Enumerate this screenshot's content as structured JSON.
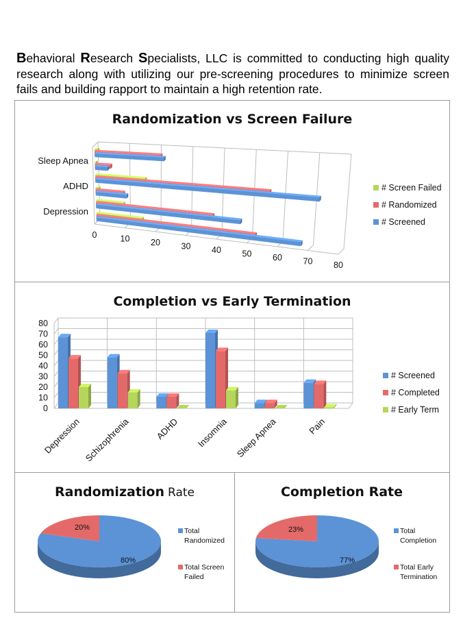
{
  "intro": {
    "c1": "B",
    "w1": "ehavioral ",
    "c2": "R",
    "w2": "esearch ",
    "c3": "S",
    "w3": "pecialists, LLC is committed to conducting high quality research along with utilizing our pre-screening procedures to minimize screen fails and building rapport to maintain a high retention rate."
  },
  "colors": {
    "blue": "#5b93d6",
    "red": "#e46a6a",
    "green": "#b5d65a"
  },
  "chart_data": [
    {
      "type": "bar",
      "orientation": "horizontal",
      "title": "Randomization vs Screen Failure",
      "categories": [
        "Depression",
        "",
        "ADHD",
        "",
        "Sleep Apnea",
        ""
      ],
      "category_labels_shown": [
        "Depression",
        "ADHD",
        "Sleep Apnea"
      ],
      "series": [
        {
          "name": "# Screened",
          "values": [
            67,
            47,
            10,
            72,
            4,
            22
          ]
        },
        {
          "name": "# Randomized",
          "values": [
            52,
            38,
            9,
            56,
            5,
            21
          ]
        },
        {
          "name": "# Screen Failed",
          "values": [
            15,
            9,
            1,
            16,
            0,
            1
          ]
        }
      ],
      "xticks": [
        "0",
        "10",
        "20",
        "30",
        "40",
        "50",
        "60",
        "70",
        "80"
      ],
      "xlim": [
        0,
        80
      ],
      "legend_position": "right"
    },
    {
      "type": "bar",
      "title": "Completion vs Early Termination",
      "categories": [
        "Depression",
        "Schizophrenia",
        "ADHD",
        "Insomnia",
        "Sleep Apnea",
        "Pain"
      ],
      "series": [
        {
          "name": "# Screened",
          "values": [
            67,
            48,
            11,
            71,
            5,
            24
          ]
        },
        {
          "name": "# Completed",
          "values": [
            47,
            33,
            11,
            54,
            5,
            23
          ]
        },
        {
          "name": "# Early Term",
          "values": [
            20,
            15,
            0,
            17,
            0,
            1
          ]
        }
      ],
      "yticks": [
        "0",
        "10",
        "20",
        "30",
        "40",
        "50",
        "60",
        "70",
        "80"
      ],
      "ylim": [
        0,
        80
      ],
      "legend_position": "right"
    },
    {
      "type": "pie",
      "title": "Randomization Rate",
      "title_main": "Randomization",
      "title_rest": "Rate",
      "labels": [
        "Total Randomized",
        "Total Screen Failed"
      ],
      "values": [
        80,
        20
      ],
      "value_labels": [
        "80%",
        "20%"
      ]
    },
    {
      "type": "pie",
      "title": "Completion Rate",
      "labels": [
        "Total Completion",
        "Total Early Termination"
      ],
      "values": [
        77,
        23
      ],
      "value_labels": [
        "77%",
        "23%"
      ]
    }
  ]
}
